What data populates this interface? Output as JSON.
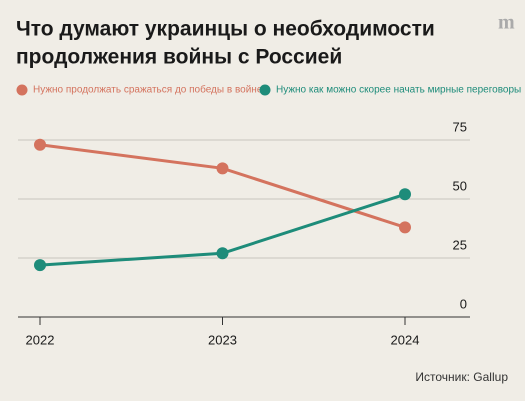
{
  "chart_data": {
    "type": "line",
    "title": [
      "Что думают украинцы о необходимости",
      "продолжения войны с Россией"
    ],
    "categories": [
      "2022",
      "2023",
      "2024"
    ],
    "series": [
      {
        "name": "Нужно продолжать сражаться до победы в войне",
        "color": "#d4735e",
        "values": [
          73,
          63,
          38
        ]
      },
      {
        "name": "Нужно как можно скорее начать мирные переговоры",
        "color": "#1e8c7a",
        "values": [
          22,
          27,
          52
        ]
      }
    ],
    "ylim": [
      0,
      75
    ],
    "yticks": [
      0,
      25,
      50,
      75
    ],
    "grid": true,
    "source": "Источник: Gallup",
    "logo": "m"
  }
}
